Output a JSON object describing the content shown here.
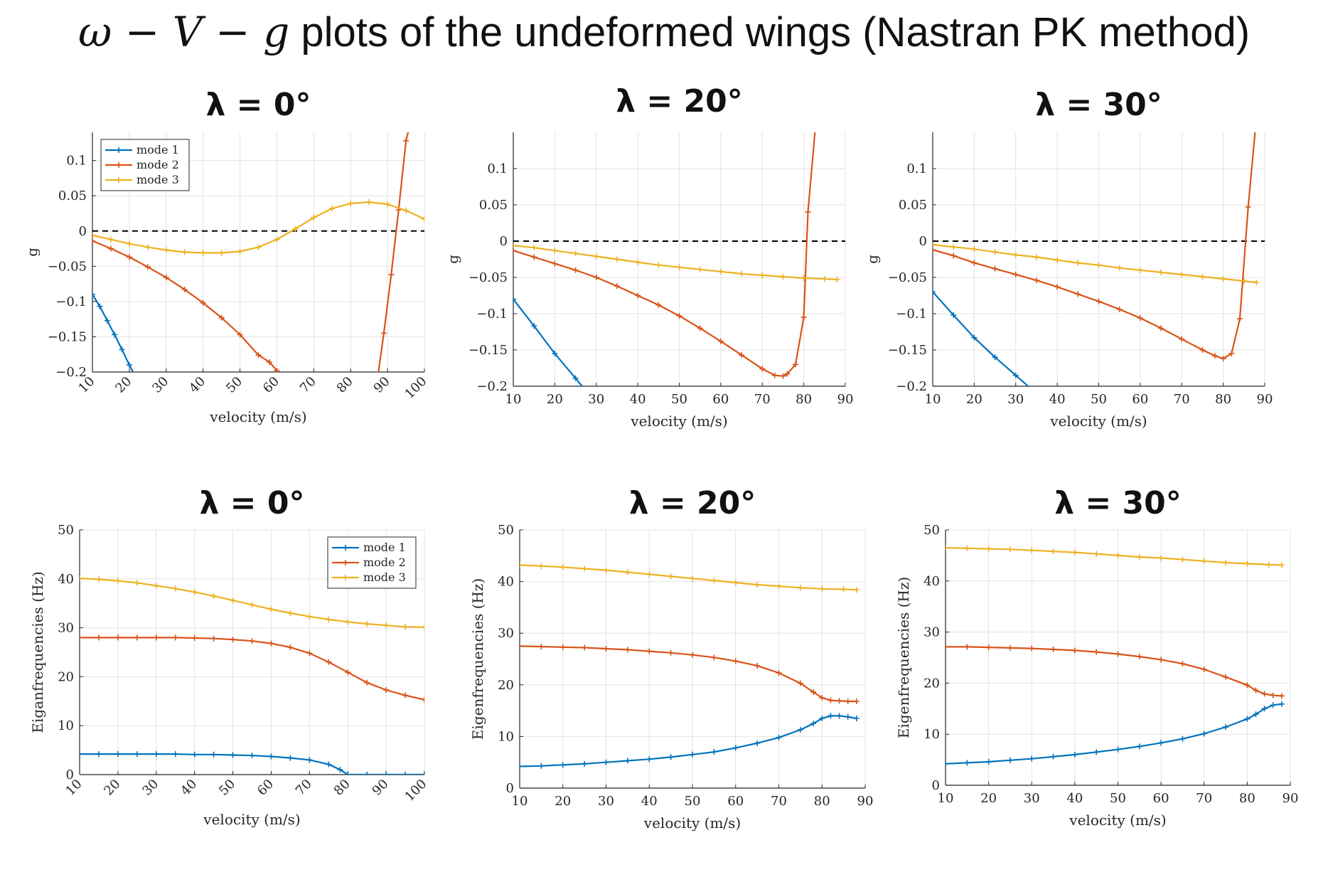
{
  "slide": {
    "title_math": "ω − V − g",
    "title_text": " plots of the undeformed wings (Nastran PK method)"
  },
  "colors": {
    "mode1": "#0072BD",
    "mode2": "#D95319",
    "mode3": "#EDB120"
  },
  "chart_data": [
    {
      "type": "line",
      "title": "λ = 0°",
      "xlabel": "velocity (m/s)",
      "ylabel": "g",
      "xlim": [
        10,
        100
      ],
      "ylim": [
        -0.2,
        0.14
      ],
      "xticks": [
        10,
        20,
        30,
        40,
        50,
        60,
        70,
        80,
        90,
        100
      ],
      "yticks": [
        -0.2,
        -0.15,
        -0.1,
        -0.05,
        0,
        0.05,
        0.1
      ],
      "ytick_labels": [
        "−0.2",
        "−0.15",
        "−0.1",
        "−0.05",
        "0",
        "0.05",
        "0.1"
      ],
      "xtick_rotate": true,
      "grid": true,
      "zero_line": true,
      "legend": {
        "position": "top-left",
        "entries": [
          "mode 1",
          "mode 2",
          "mode 3"
        ]
      },
      "series": [
        {
          "name": "mode 1",
          "x": [
            10,
            12,
            14,
            16,
            18,
            20,
            22
          ],
          "y": [
            -0.09,
            -0.107,
            -0.127,
            -0.147,
            -0.168,
            -0.19,
            -0.21
          ]
        },
        {
          "name": "mode 2",
          "x": [
            10,
            15,
            20,
            25,
            30,
            35,
            40,
            45,
            50,
            55,
            58,
            60,
            62,
            87,
            89,
            91,
            93,
            95,
            97
          ],
          "y": [
            -0.014,
            -0.025,
            -0.037,
            -0.051,
            -0.066,
            -0.083,
            -0.102,
            -0.123,
            -0.147,
            -0.176,
            -0.186,
            -0.198,
            -0.215,
            -0.22,
            -0.145,
            -0.062,
            0.03,
            0.128,
            0.17
          ]
        },
        {
          "name": "mode 3",
          "x": [
            10,
            15,
            20,
            25,
            30,
            35,
            40,
            45,
            50,
            55,
            60,
            65,
            70,
            75,
            80,
            85,
            90,
            95,
            100
          ],
          "y": [
            -0.006,
            -0.012,
            -0.018,
            -0.023,
            -0.027,
            -0.03,
            -0.031,
            -0.031,
            -0.029,
            -0.023,
            -0.012,
            0.003,
            0.019,
            0.032,
            0.039,
            0.041,
            0.038,
            0.029,
            0.017
          ]
        }
      ]
    },
    {
      "type": "line",
      "title": "λ = 20°",
      "xlabel": "velocity (m/s)",
      "ylabel": "g",
      "xlim": [
        10,
        90
      ],
      "ylim": [
        -0.2,
        0.15
      ],
      "xticks": [
        10,
        20,
        30,
        40,
        50,
        60,
        70,
        80,
        90
      ],
      "yticks": [
        -0.2,
        -0.15,
        -0.1,
        -0.05,
        0,
        0.05,
        0.1
      ],
      "ytick_labels": [
        "−0.2",
        "−0.15",
        "−0.1",
        "−0.05",
        "0",
        "0.05",
        "0.1"
      ],
      "xtick_rotate": false,
      "grid": true,
      "zero_line": true,
      "series": [
        {
          "name": "mode 1",
          "x": [
            10,
            15,
            20,
            25,
            28
          ],
          "y": [
            -0.08,
            -0.117,
            -0.155,
            -0.189,
            -0.21
          ]
        },
        {
          "name": "mode 2",
          "x": [
            10,
            15,
            20,
            25,
            30,
            35,
            40,
            45,
            50,
            55,
            60,
            65,
            70,
            73,
            75,
            76,
            78,
            80,
            81,
            83
          ],
          "y": [
            -0.013,
            -0.022,
            -0.031,
            -0.04,
            -0.05,
            -0.062,
            -0.075,
            -0.088,
            -0.103,
            -0.12,
            -0.138,
            -0.157,
            -0.176,
            -0.185,
            -0.186,
            -0.183,
            -0.17,
            -0.105,
            0.04,
            0.17
          ]
        },
        {
          "name": "mode 3",
          "x": [
            10,
            15,
            20,
            25,
            30,
            35,
            40,
            45,
            50,
            55,
            60,
            65,
            70,
            75,
            80,
            85,
            88
          ],
          "y": [
            -0.006,
            -0.009,
            -0.013,
            -0.017,
            -0.021,
            -0.025,
            -0.029,
            -0.033,
            -0.036,
            -0.039,
            -0.042,
            -0.045,
            -0.047,
            -0.049,
            -0.051,
            -0.052,
            -0.053
          ]
        }
      ]
    },
    {
      "type": "line",
      "title": "λ = 30°",
      "xlabel": "velocity (m/s)",
      "ylabel": "g",
      "xlim": [
        10,
        90
      ],
      "ylim": [
        -0.2,
        0.15
      ],
      "xticks": [
        10,
        20,
        30,
        40,
        50,
        60,
        70,
        80,
        90
      ],
      "yticks": [
        -0.2,
        -0.15,
        -0.1,
        -0.05,
        0,
        0.05,
        0.1
      ],
      "ytick_labels": [
        "−0.2",
        "−0.15",
        "−0.1",
        "−0.05",
        "0",
        "0.05",
        "0.1"
      ],
      "xtick_rotate": false,
      "grid": true,
      "zero_line": true,
      "series": [
        {
          "name": "mode 1",
          "x": [
            10,
            15,
            20,
            25,
            30,
            35
          ],
          "y": [
            -0.07,
            -0.102,
            -0.133,
            -0.16,
            -0.185,
            -0.21
          ]
        },
        {
          "name": "mode 2",
          "x": [
            10,
            15,
            20,
            25,
            30,
            35,
            40,
            45,
            50,
            55,
            60,
            65,
            70,
            75,
            78,
            80,
            82,
            84,
            86,
            88
          ],
          "y": [
            -0.012,
            -0.02,
            -0.03,
            -0.038,
            -0.046,
            -0.054,
            -0.063,
            -0.073,
            -0.083,
            -0.094,
            -0.106,
            -0.12,
            -0.135,
            -0.15,
            -0.158,
            -0.162,
            -0.155,
            -0.107,
            0.047,
            0.17
          ]
        },
        {
          "name": "mode 3",
          "x": [
            10,
            15,
            20,
            25,
            30,
            35,
            40,
            45,
            50,
            55,
            60,
            65,
            70,
            75,
            80,
            85,
            88
          ],
          "y": [
            -0.005,
            -0.008,
            -0.011,
            -0.015,
            -0.019,
            -0.022,
            -0.026,
            -0.03,
            -0.033,
            -0.037,
            -0.04,
            -0.043,
            -0.046,
            -0.049,
            -0.052,
            -0.055,
            -0.057
          ]
        }
      ]
    },
    {
      "type": "line",
      "title": "λ = 0°",
      "xlabel": "velocity (m/s)",
      "ylabel": "Eiganfrequencies (Hz)",
      "xlim": [
        10,
        100
      ],
      "ylim": [
        0,
        50
      ],
      "xticks": [
        10,
        20,
        30,
        40,
        50,
        60,
        70,
        80,
        90,
        100
      ],
      "yticks": [
        0,
        10,
        20,
        30,
        40,
        50
      ],
      "ytick_labels": [
        "0",
        "10",
        "20",
        "30",
        "40",
        "50"
      ],
      "xtick_rotate": true,
      "grid": true,
      "zero_line": false,
      "legend": {
        "position": "top-right",
        "entries": [
          "mode 1",
          "mode 2",
          "mode 3"
        ]
      },
      "series": [
        {
          "name": "mode 1",
          "x": [
            10,
            15,
            20,
            25,
            30,
            35,
            40,
            45,
            50,
            55,
            60,
            65,
            70,
            75,
            78,
            80,
            85,
            90,
            95,
            100
          ],
          "y": [
            4.2,
            4.2,
            4.2,
            4.2,
            4.2,
            4.2,
            4.1,
            4.1,
            4.0,
            3.9,
            3.7,
            3.4,
            3.0,
            2.1,
            1.0,
            0,
            0,
            0,
            0,
            0
          ]
        },
        {
          "name": "mode 2",
          "x": [
            10,
            15,
            20,
            25,
            30,
            35,
            40,
            45,
            50,
            55,
            60,
            65,
            70,
            75,
            80,
            85,
            90,
            95,
            100
          ],
          "y": [
            28.0,
            28.0,
            28.0,
            28.0,
            28.0,
            28.0,
            27.9,
            27.8,
            27.6,
            27.3,
            26.8,
            26.0,
            24.8,
            23.0,
            20.9,
            18.8,
            17.3,
            16.2,
            15.3
          ]
        },
        {
          "name": "mode 3",
          "x": [
            10,
            15,
            20,
            25,
            30,
            35,
            40,
            45,
            50,
            55,
            60,
            65,
            70,
            75,
            80,
            85,
            90,
            95,
            100
          ],
          "y": [
            40.1,
            39.9,
            39.6,
            39.2,
            38.6,
            38.0,
            37.3,
            36.5,
            35.6,
            34.7,
            33.8,
            33.0,
            32.3,
            31.7,
            31.2,
            30.8,
            30.5,
            30.2,
            30.1
          ]
        }
      ]
    },
    {
      "type": "line",
      "title": "λ = 20°",
      "xlabel": "velocity (m/s)",
      "ylabel": "Eigenfrequencies (Hz)",
      "xlim": [
        10,
        90
      ],
      "ylim": [
        0,
        50
      ],
      "xticks": [
        10,
        20,
        30,
        40,
        50,
        60,
        70,
        80,
        90
      ],
      "yticks": [
        0,
        10,
        20,
        30,
        40,
        50
      ],
      "ytick_labels": [
        "0",
        "10",
        "20",
        "30",
        "40",
        "50"
      ],
      "xtick_rotate": false,
      "grid": true,
      "zero_line": false,
      "series": [
        {
          "name": "mode 1",
          "x": [
            10,
            15,
            20,
            25,
            30,
            35,
            40,
            45,
            50,
            55,
            60,
            65,
            70,
            75,
            78,
            80,
            82,
            84,
            86,
            88
          ],
          "y": [
            4.2,
            4.3,
            4.5,
            4.7,
            5.0,
            5.3,
            5.6,
            6.0,
            6.5,
            7.0,
            7.8,
            8.7,
            9.8,
            11.3,
            12.5,
            13.5,
            14.0,
            14.0,
            13.8,
            13.5
          ]
        },
        {
          "name": "mode 2",
          "x": [
            10,
            15,
            20,
            25,
            30,
            35,
            40,
            45,
            50,
            55,
            60,
            65,
            70,
            75,
            78,
            80,
            82,
            84,
            86,
            88
          ],
          "y": [
            27.5,
            27.4,
            27.3,
            27.2,
            27.0,
            26.8,
            26.5,
            26.2,
            25.8,
            25.3,
            24.6,
            23.7,
            22.3,
            20.3,
            18.6,
            17.5,
            17.0,
            16.9,
            16.8,
            16.8
          ]
        },
        {
          "name": "mode 3",
          "x": [
            10,
            15,
            20,
            25,
            30,
            35,
            40,
            45,
            50,
            55,
            60,
            65,
            70,
            75,
            80,
            85,
            88
          ],
          "y": [
            43.2,
            43.0,
            42.8,
            42.5,
            42.2,
            41.8,
            41.4,
            41.0,
            40.6,
            40.2,
            39.8,
            39.4,
            39.1,
            38.8,
            38.6,
            38.5,
            38.4
          ]
        }
      ]
    },
    {
      "type": "line",
      "title": "λ = 30°",
      "xlabel": "velocity (m/s)",
      "ylabel": "Eigenfrequencies (Hz)",
      "xlim": [
        10,
        90
      ],
      "ylim": [
        0,
        50
      ],
      "xticks": [
        10,
        20,
        30,
        40,
        50,
        60,
        70,
        80,
        90
      ],
      "yticks": [
        0,
        10,
        20,
        30,
        40,
        50
      ],
      "ytick_labels": [
        "0",
        "10",
        "20",
        "30",
        "40",
        "50"
      ],
      "xtick_rotate": false,
      "grid": true,
      "zero_line": false,
      "series": [
        {
          "name": "mode 1",
          "x": [
            10,
            15,
            20,
            25,
            30,
            35,
            40,
            45,
            50,
            55,
            60,
            65,
            70,
            75,
            80,
            82,
            84,
            86,
            88
          ],
          "y": [
            4.2,
            4.4,
            4.6,
            4.9,
            5.2,
            5.6,
            6.0,
            6.5,
            7.0,
            7.6,
            8.3,
            9.1,
            10.1,
            11.4,
            13.0,
            13.9,
            15.0,
            15.7,
            15.9
          ]
        },
        {
          "name": "mode 2",
          "x": [
            10,
            15,
            20,
            25,
            30,
            35,
            40,
            45,
            50,
            55,
            60,
            65,
            70,
            75,
            80,
            82,
            84,
            86,
            88
          ],
          "y": [
            27.1,
            27.1,
            27.0,
            26.9,
            26.8,
            26.6,
            26.4,
            26.1,
            25.7,
            25.2,
            24.6,
            23.8,
            22.7,
            21.2,
            19.6,
            18.6,
            17.9,
            17.6,
            17.5
          ]
        },
        {
          "name": "mode 3",
          "x": [
            10,
            15,
            20,
            25,
            30,
            35,
            40,
            45,
            50,
            55,
            60,
            65,
            70,
            75,
            80,
            85,
            88
          ],
          "y": [
            46.5,
            46.4,
            46.3,
            46.2,
            46.0,
            45.8,
            45.6,
            45.3,
            45.0,
            44.7,
            44.5,
            44.2,
            43.9,
            43.6,
            43.4,
            43.2,
            43.1
          ]
        }
      ]
    }
  ]
}
